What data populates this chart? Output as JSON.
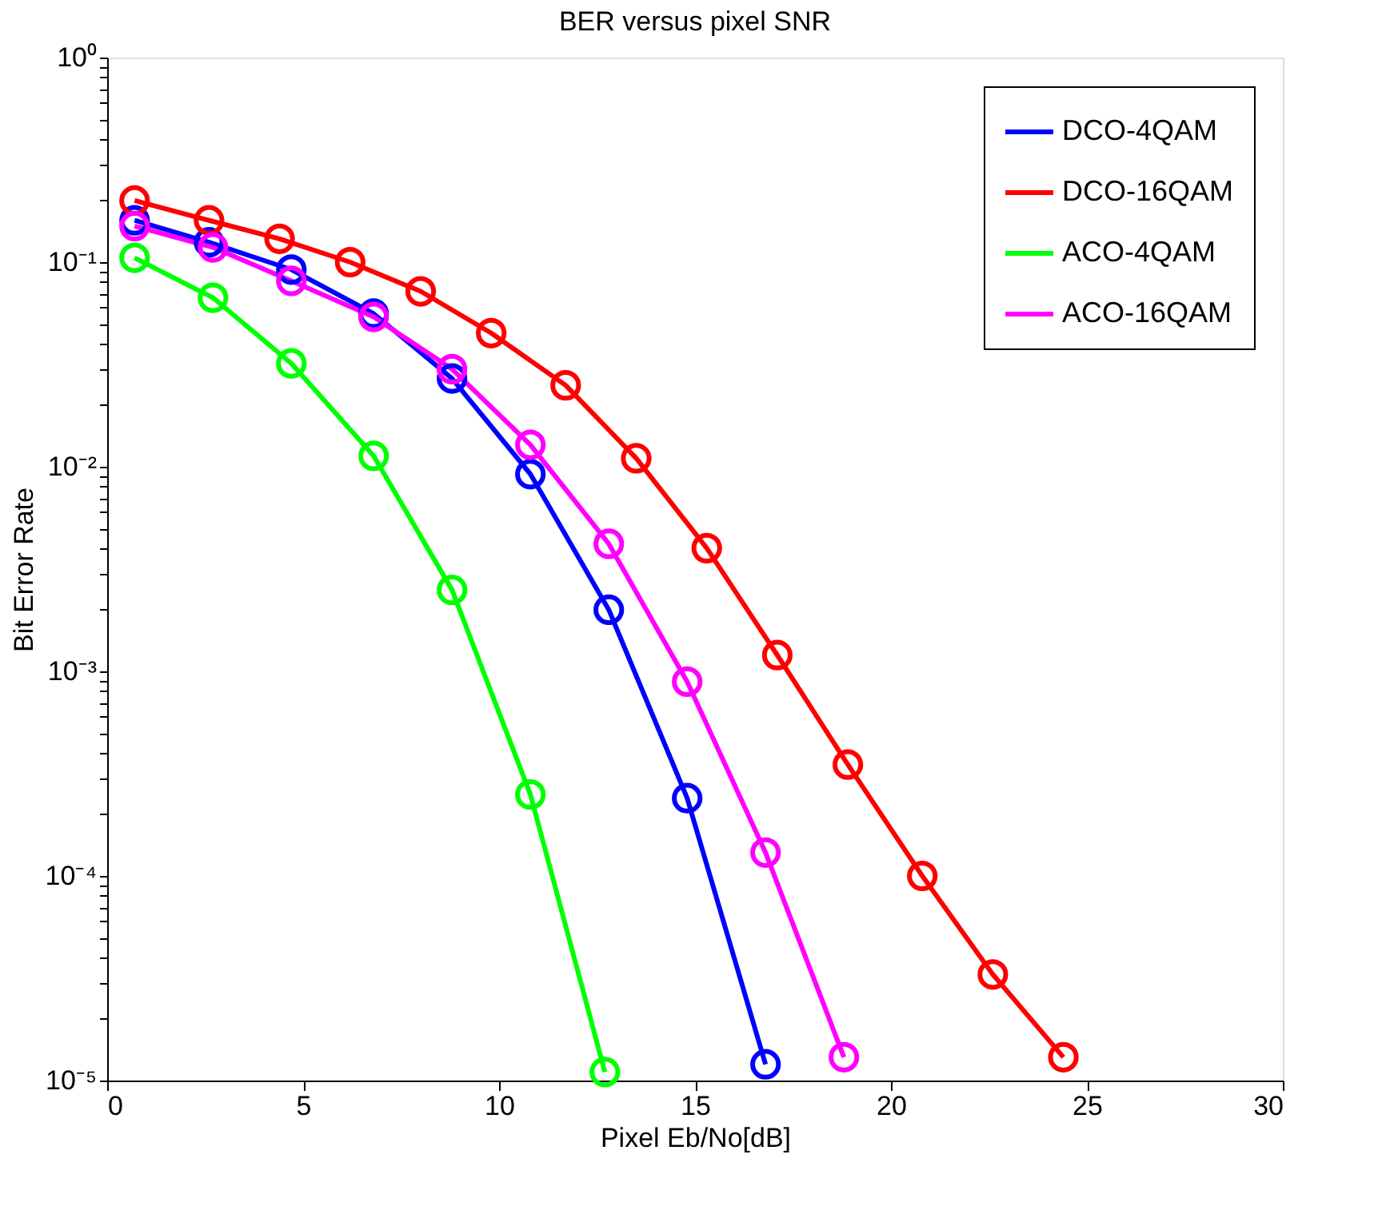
{
  "chart_data": {
    "type": "line",
    "title": "BER versus pixel SNR",
    "xlabel": "Pixel Eb/No[dB]",
    "ylabel": "Bit Error Rate",
    "log": "y",
    "grid": false,
    "legend": "top right",
    "marker": "circle",
    "line_style": "solid",
    "xlim": [
      0,
      30
    ],
    "xticks": [
      0,
      5,
      10,
      15,
      20,
      25,
      30
    ],
    "ylim": [
      1e-05,
      1
    ],
    "yticks": [
      {
        "value": 1e-05,
        "label": "10⁻⁵"
      },
      {
        "value": 2e-05,
        "label": null
      },
      {
        "value": 3e-05,
        "label": null
      },
      {
        "value": 4e-05,
        "label": null
      },
      {
        "value": 5e-05,
        "label": null
      },
      {
        "value": 6e-05,
        "label": null
      },
      {
        "value": 7e-05,
        "label": null
      },
      {
        "value": 8e-05,
        "label": null
      },
      {
        "value": 9e-05,
        "label": null
      },
      {
        "value": 0.0001,
        "label": "10⁻⁴"
      },
      {
        "value": 0.0002,
        "label": null
      },
      {
        "value": 0.0003,
        "label": null
      },
      {
        "value": 0.0004,
        "label": null
      },
      {
        "value": 0.0005,
        "label": null
      },
      {
        "value": 0.0006,
        "label": null
      },
      {
        "value": 0.0007,
        "label": null
      },
      {
        "value": 0.0008,
        "label": null
      },
      {
        "value": 0.0009,
        "label": null
      },
      {
        "value": 0.001,
        "label": "10⁻³"
      },
      {
        "value": 0.002,
        "label": null
      },
      {
        "value": 0.003,
        "label": null
      },
      {
        "value": 0.004,
        "label": null
      },
      {
        "value": 0.005,
        "label": null
      },
      {
        "value": 0.006,
        "label": null
      },
      {
        "value": 0.007,
        "label": null
      },
      {
        "value": 0.008,
        "label": null
      },
      {
        "value": 0.009,
        "label": null
      },
      {
        "value": 0.01,
        "label": "10⁻²"
      },
      {
        "value": 0.02,
        "label": null
      },
      {
        "value": 0.03,
        "label": null
      },
      {
        "value": 0.04,
        "label": null
      },
      {
        "value": 0.05,
        "label": null
      },
      {
        "value": 0.06,
        "label": null
      },
      {
        "value": 0.07,
        "label": null
      },
      {
        "value": 0.08,
        "label": null
      },
      {
        "value": 0.09,
        "label": null
      },
      {
        "value": 0.1,
        "label": "10⁻¹"
      },
      {
        "value": 0.2,
        "label": null
      },
      {
        "value": 0.3,
        "label": null
      },
      {
        "value": 0.4,
        "label": null
      },
      {
        "value": 0.5,
        "label": null
      },
      {
        "value": 0.6,
        "label": null
      },
      {
        "value": 0.7,
        "label": null
      },
      {
        "value": 0.8,
        "label": null
      },
      {
        "value": 0.9,
        "label": null
      },
      {
        "value": 1,
        "label": "10⁰"
      }
    ],
    "series": [
      {
        "name": "DCO-4QAM",
        "color": "#0000ff",
        "x": [
          0.7,
          2.6,
          4.7,
          6.8,
          8.8,
          10.8,
          12.8,
          14.8,
          16.8
        ],
        "values": [
          0.16,
          0.125,
          0.092,
          0.056,
          0.027,
          0.0092,
          0.002,
          0.00024,
          1.2e-05
        ]
      },
      {
        "name": "DCO-16QAM",
        "color": "#ff0000",
        "x": [
          0.7,
          2.6,
          4.4,
          6.2,
          8.0,
          9.8,
          11.7,
          13.5,
          15.3,
          17.1,
          18.9,
          20.8,
          22.6,
          24.4
        ],
        "values": [
          0.2,
          0.16,
          0.13,
          0.1,
          0.072,
          0.045,
          0.025,
          0.011,
          0.004,
          0.0012,
          0.00035,
          0.0001,
          3.3e-05,
          1.3e-05
        ]
      },
      {
        "name": "ACO-4QAM",
        "color": "#00ff00",
        "x": [
          0.7,
          2.7,
          4.7,
          6.8,
          8.8,
          10.8,
          12.7
        ],
        "values": [
          0.105,
          0.067,
          0.032,
          0.0113,
          0.0025,
          0.00025,
          1.1e-05
        ]
      },
      {
        "name": "ACO-16QAM",
        "color": "#ff00ff",
        "x": [
          0.7,
          2.7,
          4.7,
          6.8,
          8.8,
          10.8,
          12.8,
          14.8,
          16.8,
          18.8
        ],
        "values": [
          0.15,
          0.118,
          0.081,
          0.054,
          0.03,
          0.0128,
          0.0042,
          0.00089,
          0.00013,
          1.3e-05
        ]
      }
    ]
  }
}
